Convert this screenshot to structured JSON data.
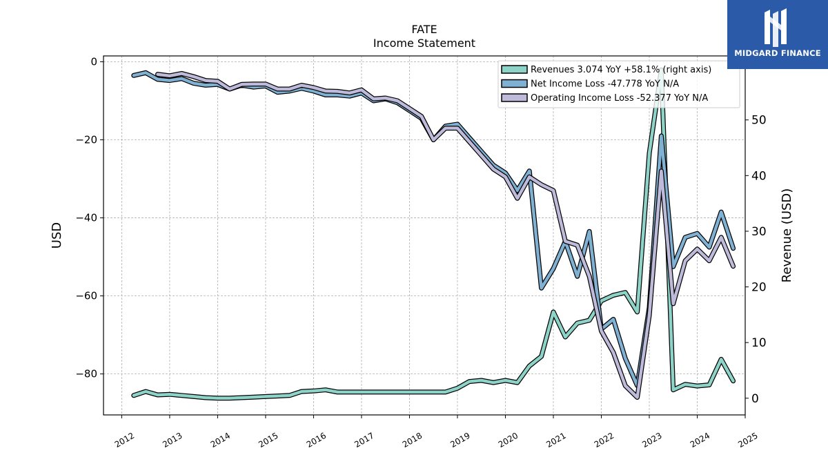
{
  "brand": {
    "name": "MIDGARD FINANCE",
    "logo_icon": "m-monogram-icon",
    "color": "#2a5aa8"
  },
  "chart_data": {
    "type": "line",
    "title": "FATE",
    "subtitle": "Income Statement",
    "ylabel": "USD",
    "y2label": "Revenue (USD)",
    "ylim": [
      -90.5,
      1.5
    ],
    "y2lim": [
      -3,
      61.5
    ],
    "xlim": [
      2011.62,
      2025.0
    ],
    "x_ticks": [
      "2012",
      "2013",
      "2014",
      "2015",
      "2016",
      "2017",
      "2018",
      "2019",
      "2020",
      "2021",
      "2022",
      "2023",
      "2024",
      "2025"
    ],
    "y_ticks": [
      0,
      -20,
      -40,
      -60,
      -80
    ],
    "y2_ticks": [
      0,
      10,
      20,
      30,
      40,
      50
    ],
    "grid": true,
    "legend_position": "top-right",
    "series": [
      {
        "name": "Revenues  3.074 YoY +58.1% (right axis)",
        "axis": "right",
        "color": "#8dd3c7",
        "x": [
          2012.25,
          2012.5,
          2012.75,
          2013.0,
          2013.25,
          2013.5,
          2013.75,
          2014.0,
          2014.25,
          2014.5,
          2014.75,
          2015.0,
          2015.25,
          2015.5,
          2015.75,
          2016.0,
          2016.25,
          2016.5,
          2016.75,
          2017.0,
          2017.25,
          2017.5,
          2017.75,
          2018.0,
          2018.25,
          2018.5,
          2018.75,
          2019.0,
          2019.25,
          2019.5,
          2019.75,
          2020.0,
          2020.25,
          2020.5,
          2020.75,
          2021.0,
          2021.25,
          2021.5,
          2021.75,
          2022.0,
          2022.25,
          2022.5,
          2022.75,
          2023.0,
          2023.25,
          2023.5,
          2023.75,
          2024.0,
          2024.25,
          2024.5,
          2024.75
        ],
        "values": [
          0.5,
          1.2,
          0.6,
          0.7,
          0.5,
          0.3,
          0.1,
          0.0,
          0.0,
          0.1,
          0.2,
          0.3,
          0.4,
          0.5,
          1.2,
          1.3,
          1.5,
          1.1,
          1.1,
          1.1,
          1.1,
          1.1,
          1.1,
          1.1,
          1.1,
          1.1,
          1.1,
          1.8,
          3.0,
          3.2,
          2.8,
          3.2,
          2.8,
          5.8,
          7.5,
          15.5,
          11.0,
          13.5,
          14.0,
          17.5,
          18.5,
          19.0,
          15.5,
          44.0,
          59.0,
          1.5,
          2.5,
          2.2,
          2.4,
          7.0,
          3.1
        ]
      },
      {
        "name": "Net Income Loss  -47.778 YoY N/A",
        "axis": "left",
        "color": "#80b1d3",
        "x": [
          2012.25,
          2012.5,
          2012.75,
          2013.0,
          2013.25,
          2013.5,
          2013.75,
          2014.0,
          2014.25,
          2014.5,
          2014.75,
          2015.0,
          2015.25,
          2015.5,
          2015.75,
          2016.0,
          2016.25,
          2016.5,
          2016.75,
          2017.0,
          2017.25,
          2017.5,
          2017.75,
          2018.0,
          2018.25,
          2018.5,
          2018.75,
          2019.0,
          2019.25,
          2019.5,
          2019.75,
          2020.0,
          2020.25,
          2020.5,
          2020.75,
          2021.0,
          2021.25,
          2021.5,
          2021.75,
          2022.0,
          2022.25,
          2022.5,
          2022.75,
          2023.0,
          2023.25,
          2023.5,
          2023.75,
          2024.0,
          2024.25,
          2024.5,
          2024.75
        ],
        "values": [
          -3.5,
          -2.8,
          -4.5,
          -4.8,
          -4.3,
          -5.5,
          -6.0,
          -5.8,
          -7.0,
          -6.0,
          -6.5,
          -6.2,
          -7.8,
          -7.5,
          -6.8,
          -7.5,
          -8.5,
          -8.5,
          -8.8,
          -8.0,
          -10.0,
          -9.5,
          -10.5,
          -12.5,
          -14.5,
          -20.0,
          -16.5,
          -16.0,
          -19.5,
          -23.0,
          -26.5,
          -28.5,
          -33.0,
          -28.0,
          -58.0,
          -53.0,
          -46.0,
          -55.0,
          -43.5,
          -68.5,
          -66.0,
          -76.0,
          -83.0,
          -63.0,
          -19.0,
          -52.5,
          -45.0,
          -44.0,
          -47.5,
          -38.5,
          -47.8
        ]
      },
      {
        "name": "Operating Income Loss  -52.377 YoY N/A",
        "axis": "left",
        "color": "#bebada",
        "x": [
          2012.75,
          2013.0,
          2013.25,
          2013.5,
          2013.75,
          2014.0,
          2014.25,
          2014.5,
          2014.75,
          2015.0,
          2015.25,
          2015.5,
          2015.75,
          2016.0,
          2016.25,
          2016.5,
          2016.75,
          2017.0,
          2017.25,
          2017.5,
          2017.75,
          2018.0,
          2018.25,
          2018.5,
          2018.75,
          2019.0,
          2019.25,
          2019.5,
          2019.75,
          2020.0,
          2020.25,
          2020.5,
          2020.75,
          2021.0,
          2021.25,
          2021.5,
          2021.75,
          2022.0,
          2022.25,
          2022.5,
          2022.75,
          2023.0,
          2023.25,
          2023.5,
          2023.75,
          2024.0,
          2024.25,
          2024.5,
          2024.75
        ],
        "values": [
          -3.2,
          -3.6,
          -3.0,
          -3.8,
          -4.8,
          -5.0,
          -7.0,
          -5.8,
          -5.7,
          -5.7,
          -7.0,
          -7.0,
          -6.0,
          -6.6,
          -7.5,
          -7.6,
          -8.0,
          -7.2,
          -9.5,
          -9.3,
          -10.0,
          -12.0,
          -14.0,
          -20.0,
          -17.0,
          -17.0,
          -20.5,
          -24.0,
          -27.5,
          -29.5,
          -35.0,
          -29.5,
          -31.5,
          -33.0,
          -46.0,
          -47.0,
          -55.0,
          -69.0,
          -74.5,
          -83.0,
          -86.0,
          -65.0,
          -28.0,
          -62.0,
          -51.0,
          -48.0,
          -51.0,
          -45.0,
          -52.4
        ]
      }
    ]
  }
}
